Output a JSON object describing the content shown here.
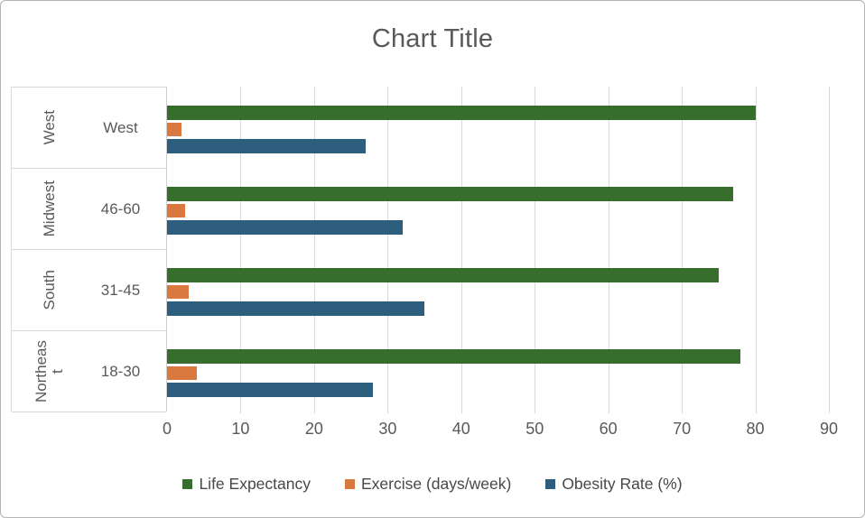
{
  "chart": {
    "title": "Chart Title",
    "colors": {
      "life_expectancy": "#376E2D",
      "exercise": "#D9783F",
      "obesity_rate": "#2E5E7E",
      "gridline": "#D9D9D9",
      "axis_text": "#595959",
      "legend_text": "#474747",
      "frame_border": "#B3B3B3"
    }
  },
  "chart_data": {
    "type": "bar",
    "orientation": "horizontal",
    "title": "Chart Title",
    "categories_outer": [
      "West",
      "Midwest",
      "South",
      "Northeast"
    ],
    "categories_inner": [
      "West",
      "46-60",
      "31-45",
      "18-30"
    ],
    "series": [
      {
        "name": "Life Expectancy",
        "color_key": "life_expectancy",
        "values": [
          80,
          77,
          75,
          78
        ]
      },
      {
        "name": "Exercise (days/week)",
        "color_key": "exercise",
        "values": [
          2,
          2.5,
          3,
          4
        ]
      },
      {
        "name": "Obesity Rate (%)",
        "color_key": "obesity_rate",
        "values": [
          27,
          32,
          35,
          28
        ]
      }
    ],
    "x_ticks": [
      0,
      10,
      20,
      30,
      40,
      50,
      60,
      70,
      80,
      90
    ],
    "xlim": [
      0,
      90
    ],
    "grid": true,
    "legend_position": "bottom"
  }
}
